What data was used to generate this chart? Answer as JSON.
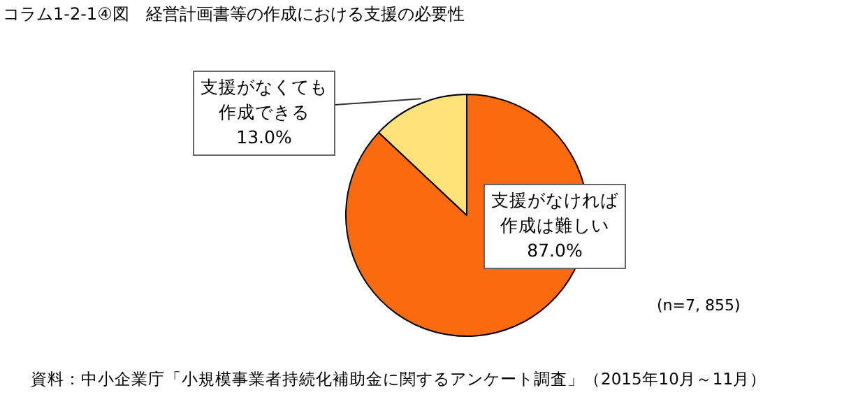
{
  "chart_data": {
    "type": "pie",
    "title": "コラム1-2-1④図　経営計画書等の作成における支援の必要性",
    "categories": [
      "支援がなければ作成は難しい",
      "支援がなくても作成できる"
    ],
    "values": [
      87.0,
      13.0
    ],
    "value_labels": [
      "87.0%",
      "13.0%"
    ],
    "colors": [
      "#fa6a0f",
      "#ffe27a"
    ],
    "legend": false,
    "annotations": [
      "(n=7, 855)",
      "資料：中小企業庁「小規模事業者持続化補助金に関するアンケート調査」（2015年10月～11月）"
    ]
  }
}
